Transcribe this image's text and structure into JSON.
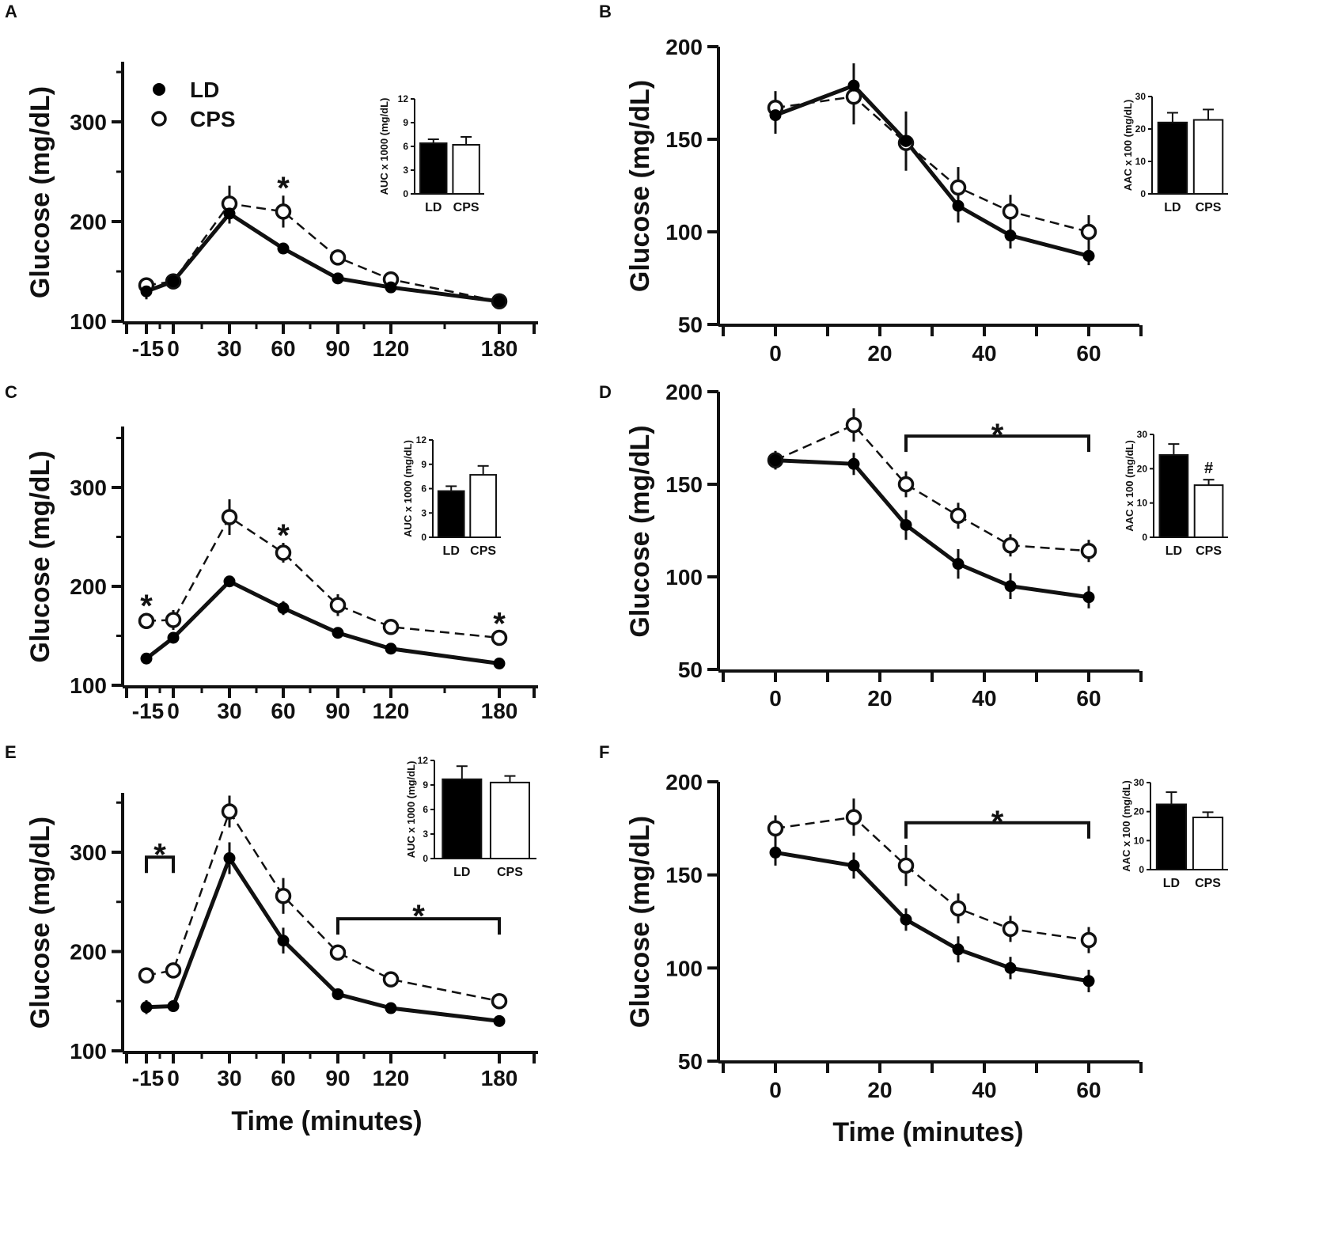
{
  "colors": {
    "ink": "#111111",
    "filled": "#000000",
    "open": "#ffffff"
  },
  "legend": {
    "ld": "LD",
    "cps": "CPS"
  },
  "chart_data": [
    {
      "panel": "A",
      "type": "line",
      "ylabel": "Glucose (mg/dL)",
      "xlabel": "",
      "x": [
        -15,
        0,
        30,
        60,
        90,
        120,
        180
      ],
      "xticks": [
        "-15",
        "0",
        "30",
        "60",
        "90",
        "120",
        "180"
      ],
      "yticks": [
        "100",
        "200",
        "300"
      ],
      "ylim": [
        100,
        360
      ],
      "series": [
        {
          "name": "LD",
          "values": [
            130,
            140,
            208,
            173,
            143,
            134,
            120
          ],
          "err": [
            8,
            4,
            10,
            4,
            3,
            3,
            3
          ]
        },
        {
          "name": "CPS",
          "values": [
            136,
            140,
            218,
            210,
            164,
            142,
            120
          ],
          "err": [
            5,
            4,
            18,
            16,
            8,
            4,
            3
          ]
        }
      ],
      "annotations": [
        {
          "text": "*",
          "x": 60
        }
      ],
      "brackets": [],
      "legend_shown": true,
      "inset": {
        "type": "bar",
        "ylabel": "AUC x 1000 (mg/dL)",
        "categories": [
          "LD",
          "CPS"
        ],
        "values": [
          6.4,
          6.2
        ],
        "err": [
          0.5,
          1.0
        ],
        "yticks": [
          "0",
          "3",
          "6",
          "9",
          "12"
        ],
        "ylim": [
          0,
          12
        ],
        "annotations": []
      }
    },
    {
      "panel": "B",
      "type": "line",
      "ylabel": "Glucose (mg/dL)",
      "xlabel": "",
      "x": [
        0,
        15,
        25,
        35,
        45,
        60
      ],
      "xticks": [
        "0",
        "20",
        "40",
        "60"
      ],
      "yticks": [
        "50",
        "100",
        "150",
        "200"
      ],
      "ylim": [
        50,
        200
      ],
      "xlim": [
        -10,
        70
      ],
      "series": [
        {
          "name": "LD",
          "values": [
            163,
            179,
            149,
            114,
            98,
            87
          ],
          "err": [
            10,
            12,
            16,
            9,
            7,
            5
          ]
        },
        {
          "name": "CPS",
          "values": [
            167,
            173,
            148,
            124,
            111,
            100
          ],
          "err": [
            9,
            15,
            10,
            11,
            9,
            9
          ]
        }
      ],
      "annotations": [],
      "brackets": [],
      "legend_shown": false,
      "inset": {
        "type": "bar",
        "ylabel": "AAC x 100 (mg/dL)",
        "categories": [
          "LD",
          "CPS"
        ],
        "values": [
          22,
          22.8
        ],
        "err": [
          3,
          3.2
        ],
        "yticks": [
          "0",
          "10",
          "20",
          "30"
        ],
        "ylim": [
          0,
          30
        ],
        "annotations": []
      }
    },
    {
      "panel": "C",
      "type": "line",
      "ylabel": "Glucose (mg/dL)",
      "xlabel": "",
      "x": [
        -15,
        0,
        30,
        60,
        90,
        120,
        180
      ],
      "xticks": [
        "-15",
        "0",
        "30",
        "60",
        "90",
        "120",
        "180"
      ],
      "yticks": [
        "100",
        "200",
        "300"
      ],
      "ylim": [
        100,
        360
      ],
      "series": [
        {
          "name": "LD",
          "values": [
            127,
            148,
            205,
            178,
            153,
            137,
            122
          ],
          "err": [
            3,
            3,
            4,
            7,
            3,
            3,
            3
          ]
        },
        {
          "name": "CPS",
          "values": [
            165,
            166,
            270,
            234,
            181,
            159,
            148
          ],
          "err": [
            8,
            10,
            18,
            10,
            11,
            7,
            7
          ]
        }
      ],
      "annotations": [
        {
          "text": "*",
          "x": -15
        },
        {
          "text": "*",
          "x": 60
        },
        {
          "text": "*",
          "x": 180
        }
      ],
      "brackets": [],
      "legend_shown": false,
      "inset": {
        "type": "bar",
        "ylabel": "AUC x 1000 (mg/dL)",
        "categories": [
          "LD",
          "CPS"
        ],
        "values": [
          5.7,
          7.7
        ],
        "err": [
          0.6,
          1.1
        ],
        "yticks": [
          "0",
          "3",
          "6",
          "9",
          "12"
        ],
        "ylim": [
          0,
          12
        ],
        "annotations": []
      }
    },
    {
      "panel": "D",
      "type": "line",
      "ylabel": "Glucose (mg/dL)",
      "xlabel": "",
      "x": [
        0,
        15,
        25,
        35,
        45,
        60
      ],
      "xticks": [
        "0",
        "20",
        "40",
        "60"
      ],
      "yticks": [
        "50",
        "100",
        "150",
        "200"
      ],
      "ylim": [
        50,
        200
      ],
      "xlim": [
        -10,
        70
      ],
      "series": [
        {
          "name": "LD",
          "values": [
            163,
            161,
            128,
            107,
            95,
            89
          ],
          "err": [
            5,
            6,
            8,
            8,
            7,
            6
          ]
        },
        {
          "name": "CPS",
          "values": [
            163,
            182,
            150,
            133,
            117,
            114
          ],
          "err": [
            5,
            9,
            7,
            7,
            6,
            6
          ]
        }
      ],
      "annotations": [
        {
          "text": "*",
          "x": 42.5
        }
      ],
      "brackets": [
        {
          "from": 25,
          "to": 60,
          "y": 176
        }
      ],
      "legend_shown": false,
      "inset": {
        "type": "bar",
        "ylabel": "AAC x 100 (mg/dL)",
        "categories": [
          "LD",
          "CPS"
        ],
        "values": [
          24,
          15.2
        ],
        "err": [
          3.2,
          1.6
        ],
        "yticks": [
          "0",
          "10",
          "20",
          "30"
        ],
        "ylim": [
          0,
          30
        ],
        "annotations": [
          {
            "text": "#",
            "category": "CPS"
          }
        ]
      }
    },
    {
      "panel": "E",
      "type": "line",
      "ylabel": "Glucose (mg/dL)",
      "xlabel": "Time (minutes)",
      "x": [
        -15,
        0,
        30,
        60,
        90,
        120,
        180
      ],
      "xticks": [
        "-15",
        "0",
        "30",
        "60",
        "90",
        "120",
        "180"
      ],
      "yticks": [
        "100",
        "200",
        "300"
      ],
      "ylim": [
        100,
        360
      ],
      "series": [
        {
          "name": "LD",
          "values": [
            144,
            145,
            294,
            211,
            157,
            143,
            130
          ],
          "err": [
            7,
            4,
            16,
            13,
            5,
            3,
            3
          ]
        },
        {
          "name": "CPS",
          "values": [
            176,
            181,
            341,
            256,
            199,
            172,
            150
          ],
          "err": [
            4,
            4,
            16,
            18,
            5,
            4,
            4
          ]
        }
      ],
      "annotations": [
        {
          "text": "*",
          "x": -7.5
        },
        {
          "text": "*",
          "x": 135
        }
      ],
      "brackets": [
        {
          "from": -15,
          "to": 0,
          "y": 295
        },
        {
          "from": 90,
          "to": 180,
          "y": 233
        }
      ],
      "legend_shown": false,
      "inset": {
        "type": "bar",
        "ylabel": "AUC x 1000 (mg/dL)",
        "categories": [
          "LD",
          "CPS"
        ],
        "values": [
          9.7,
          9.3
        ],
        "err": [
          1.6,
          0.8
        ],
        "yticks": [
          "0",
          "3",
          "6",
          "9",
          "12"
        ],
        "ylim": [
          0,
          12
        ],
        "annotations": []
      }
    },
    {
      "panel": "F",
      "type": "line",
      "ylabel": "Glucose (mg/dL)",
      "xlabel": "Time (minutes)",
      "x": [
        0,
        15,
        25,
        35,
        45,
        60
      ],
      "xticks": [
        "0",
        "20",
        "40",
        "60"
      ],
      "yticks": [
        "50",
        "100",
        "150",
        "200"
      ],
      "ylim": [
        50,
        200
      ],
      "xlim": [
        -10,
        70
      ],
      "series": [
        {
          "name": "LD",
          "values": [
            162,
            155,
            126,
            110,
            100,
            93
          ],
          "err": [
            7,
            7,
            6,
            7,
            6,
            6
          ]
        },
        {
          "name": "CPS",
          "values": [
            175,
            181,
            155,
            132,
            121,
            115
          ],
          "err": [
            7,
            10,
            11,
            8,
            7,
            7
          ]
        }
      ],
      "annotations": [
        {
          "text": "*",
          "x": 42.5
        }
      ],
      "brackets": [
        {
          "from": 25,
          "to": 60,
          "y": 178
        }
      ],
      "legend_shown": false,
      "inset": {
        "type": "bar",
        "ylabel": "AAC x 100 (mg/dL)",
        "categories": [
          "LD",
          "CPS"
        ],
        "values": [
          22.5,
          18
        ],
        "err": [
          4.2,
          1.8
        ],
        "yticks": [
          "0",
          "10",
          "20",
          "30"
        ],
        "ylim": [
          0,
          30
        ],
        "annotations": []
      }
    }
  ]
}
